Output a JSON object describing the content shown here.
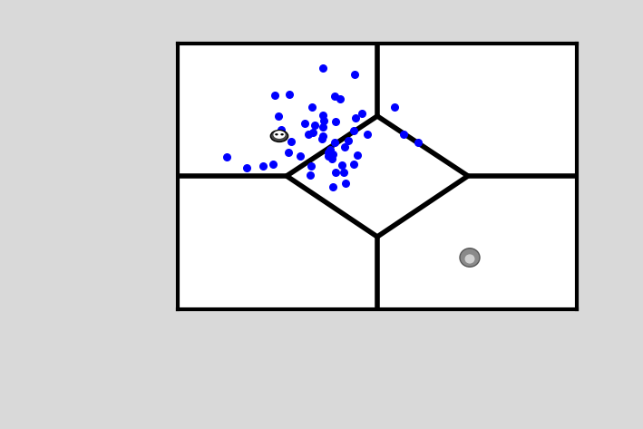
{
  "chart_data": {
    "type": "scatter",
    "x": [
      160,
      195,
      107,
      123,
      173,
      179,
      148,
      111,
      160,
      161,
      174,
      196,
      203,
      140,
      151,
      239,
      160,
      144,
      149,
      160,
      159,
      114,
      116,
      125,
      209,
      194,
      249,
      265,
      173,
      184,
      168,
      122,
      135,
      166,
      171,
      170,
      198,
      54,
      76,
      94,
      105,
      147,
      181,
      194,
      146,
      174,
      183,
      171,
      185,
      166,
      188
    ],
    "y": [
      266,
      259,
      236,
      237,
      235,
      232,
      223,
      213,
      214,
      208,
      207,
      211,
      216,
      205,
      203,
      223,
      201,
      193,
      195,
      191,
      188,
      198,
      191,
      185,
      193,
      197,
      193,
      184,
      184,
      179,
      176,
      173,
      169,
      169,
      171,
      166,
      170,
      168,
      156,
      158,
      160,
      158,
      159,
      160,
      148,
      151,
      151,
      135,
      139,
      173,
      186
    ],
    "color": "#0000ff",
    "xlim": [
      0,
      440
    ],
    "ylim": [
      0,
      293
    ],
    "tick_labels": false
  }
}
